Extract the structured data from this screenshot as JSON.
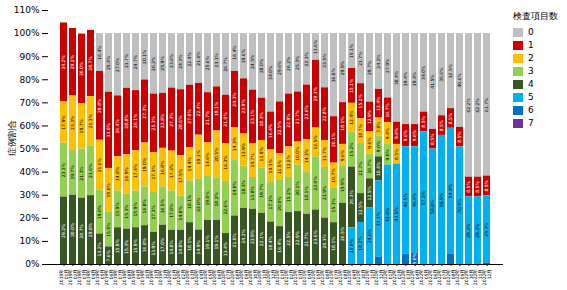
{
  "chart_data": {
    "type": "bar",
    "stacked": true,
    "data_labels": true,
    "grid": false,
    "legend": "right",
    "legend_title": "検査項目数",
    "ylabel": "症例割合",
    "ylim": [
      0,
      110
    ],
    "yticks": [
      {
        "value": 0,
        "label": "0%"
      },
      {
        "value": 10,
        "label": "10%"
      },
      {
        "value": 20,
        "label": "20%"
      },
      {
        "value": 30,
        "label": "30%"
      },
      {
        "value": 40,
        "label": "40%"
      },
      {
        "value": 50,
        "label": "50%"
      },
      {
        "value": 60,
        "label": "60%"
      },
      {
        "value": 70,
        "label": "70%"
      },
      {
        "value": 80,
        "label": "80%"
      },
      {
        "value": 90,
        "label": "90%"
      },
      {
        "value": 100,
        "label": "100%"
      },
      {
        "value": 110,
        "label": "110%"
      }
    ],
    "categories": [
      "2019年\n01月",
      "2019年\n02月",
      "2019年\n03月",
      "2019年\n04月",
      "2019年\n05月",
      "2019年\n06月",
      "2019年\n07月",
      "2019年\n08月",
      "2019年\n09月",
      "2019年\n10月",
      "2019年\n11月",
      "2019年\n12月",
      "2020年\n01月",
      "2020年\n02月",
      "2020年\n03月",
      "2020年\n04月",
      "2020年\n05月",
      "2020年\n06月",
      "2020年\n07月",
      "2020年\n08月",
      "2020年\n09月",
      "2020年\n10月",
      "2020年\n11月",
      "2020年\n12月",
      "2021年\n01月",
      "2021年\n02月",
      "2021年\n03月",
      "2021年\n04月",
      "2021年\n05月",
      "2021年\n06月",
      "2021年\n07月",
      "2021年\n08月",
      "2021年\n09月",
      "2021年\n10月",
      "2021年\n11月",
      "2021年\n12月",
      "2022年\n01月",
      "2022年\n02月",
      "2022年\n03月",
      "2022年\n04月",
      "2022年\n05月",
      "2022年\n06月",
      "2022年\n07月",
      "2022年\n08月",
      "2022年\n09月",
      "2022年\n10月",
      "2022年\n11月",
      "2022年\n12月"
    ],
    "series": [
      {
        "name": "0",
        "color": "#bfbfbf",
        "values": [
          0.0,
          0.0,
          0.3,
          0.0,
          16.4,
          25.4,
          27.0,
          23.7,
          24.7,
          20.1,
          26.2,
          25.9,
          23.6,
          24.3,
          22.4,
          21.6,
          25.6,
          23.1,
          26.7,
          16.4,
          19.6,
          24.5,
          28.0,
          34.0,
          29.6,
          26.2,
          25.3,
          22.3,
          11.6,
          23.5,
          36.0,
          29.9,
          15.1,
          21.7,
          29.7,
          24.2,
          27.9,
          38.4,
          39.4,
          39.4,
          34.0,
          41.5,
          35.6,
          32.5,
          40.6,
          62.2,
          62.2,
          61.7
        ],
        "value_labels": [
          null,
          null,
          null,
          null,
          "16.4%",
          "25.4%",
          "27.0%",
          "23.7%",
          "24.7%",
          "20.1%",
          "26.2%",
          "25.9%",
          "23.6%",
          "24.3%",
          "22.4%",
          "21.6%",
          "25.6%",
          "23.1%",
          "26.7%",
          "16.4%",
          "19.6%",
          "24.5%",
          "28.0%",
          "34.0%",
          "29.6%",
          "26.2%",
          "25.3%",
          "22.3%",
          "11.6%",
          "23.5%",
          "36.0%",
          "29.9%",
          "15.1%",
          "21.7%",
          "29.7%",
          "24.2%",
          "27.9%",
          "38.4%",
          "39.4%",
          "39.4%",
          "34.0%",
          "41.5%",
          "35.6%",
          "32.5%",
          "40.6%",
          "62.2%",
          "62.2%",
          "61.7%"
        ]
      },
      {
        "name": "1",
        "color": "#cc0000",
        "values": [
          34.2,
          29.2,
          30.0,
          28.7,
          29.8,
          33.0,
          26.4,
          28.8,
          26.1,
          27.3,
          25.3,
          23.8,
          27.3,
          28.6,
          27.0,
          22.4,
          21.7,
          19.1,
          21.0,
          24.3,
          23.9,
          23.1,
          18.3,
          16.4,
          22.5,
          22.9,
          21.7,
          23.6,
          29.3,
          22.8,
          20.1,
          18.1,
          15.1,
          15.2,
          12.9,
          12.4,
          10.7,
          9.6,
          9.6,
          9.6,
          8.5,
          8.5,
          8.5,
          8.5,
          8.5,
          8.5,
          8.5,
          8.5
        ],
        "value_labels": [
          "34.2%",
          "29.2%",
          "30.0%",
          "28.7%",
          "29.8%",
          "33.0%",
          "26.4%",
          "28.8%",
          "26.1%",
          "27.3%",
          "25.3%",
          "23.8%",
          "27.3%",
          "28.6%",
          "27.0%",
          "22.4%",
          "21.7%",
          "19.1%",
          "21.0%",
          "24.3%",
          "23.9%",
          "23.1%",
          "18.3%",
          "16.4%",
          "22.5%",
          "22.9%",
          "21.7%",
          "23.6%",
          "29.3%",
          "22.8%",
          "20.1%",
          "18.1%",
          "15.1%",
          "15.2%",
          "12.9%",
          "12.4%",
          "10.7%",
          "9.6%",
          "9.6%",
          "9.6%",
          "8.5%",
          "8.5%",
          "8.5%",
          "8.5%",
          "8.5%",
          "8.5%",
          "8.5%",
          "8.5%"
        ]
      },
      {
        "name": "2",
        "color": "#ffc000",
        "values": [
          17.9,
          23.3,
          19.7,
          21.3,
          21.6,
          19.0,
          14.8,
          16.9,
          17.4,
          19.0,
          17.3,
          16.8,
          17.3,
          17.5,
          14.4,
          19.1,
          14.6,
          20.5,
          16.3,
          14.3,
          13.9,
          14.7,
          11.9,
          14.1,
          11.5,
          13.2,
          10.0,
          14.3,
          12.5,
          11.7,
          10.7,
          9.6,
          12.4,
          10.7,
          9.6,
          7.8,
          9.4,
          8.5,
          0.0,
          0.0,
          0.0,
          0.0,
          0.0,
          0.0,
          0.0,
          0.0,
          0.0,
          0.0
        ],
        "value_labels": [
          "17.9%",
          "23.3%",
          "19.7%",
          "21.3%",
          "21.6%",
          "19.0%",
          "14.8%",
          "16.9%",
          "17.4%",
          "19.0%",
          "17.3%",
          "16.8%",
          "17.3%",
          "17.5%",
          "14.4%",
          "19.1%",
          "14.6%",
          "20.5%",
          "16.3%",
          "14.3%",
          "13.9%",
          "14.7%",
          "11.9%",
          "14.1%",
          "11.5%",
          "13.2%",
          "10.0%",
          "14.3%",
          "12.5%",
          "11.7%",
          "10.7%",
          "9.6%",
          "12.4%",
          "10.7%",
          "9.6%",
          "7.8%",
          "9.4%",
          "8.5%",
          null,
          null,
          null,
          null,
          null,
          null,
          null,
          null,
          null,
          null
        ]
      },
      {
        "name": "3",
        "color": "#92d050",
        "values": [
          23.3,
          19.7,
          21.3,
          21.6,
          19.0,
          15.0,
          15.9,
          15.3,
          15.9,
          16.8,
          17.3,
          16.5,
          17.0,
          14.8,
          18.1,
          22.0,
          19.0,
          18.2,
          22.6,
          24.0,
          18.3,
          13.8,
          19.7,
          17.1,
          20.0,
          15.2,
          20.1,
          18.1,
          23.0,
          21.9,
          15.1,
          15.9,
          15.2,
          21.7,
          10.7,
          9.0,
          9.0,
          0.0,
          0.0,
          0.0,
          0.0,
          0.0,
          0.0,
          0.0,
          0.0,
          0.0,
          0.0,
          0.0
        ],
        "value_labels": [
          "23.3%",
          "19.7%",
          "21.3%",
          "21.6%",
          "19.0%",
          "15.0%",
          "15.9%",
          "15.3%",
          "15.9%",
          "16.8%",
          "17.3%",
          "16.5%",
          "17.0%",
          "14.8%",
          "18.1%",
          "22.0%",
          "19.0%",
          "18.2%",
          "22.6%",
          "24.0%",
          "18.3%",
          "13.8%",
          "19.7%",
          "17.1%",
          "20.0%",
          "15.2%",
          "20.1%",
          "18.1%",
          "23.0%",
          "21.9%",
          "15.1%",
          "15.9%",
          "15.2%",
          "21.7%",
          "10.7%",
          "9.0%",
          "9.0%",
          null,
          null,
          null,
          null,
          null,
          null,
          null,
          null,
          null,
          null,
          null
        ]
      },
      {
        "name": "4",
        "color": "#375623",
        "values": [
          29.2,
          30.0,
          28.7,
          29.8,
          13.2,
          7.6,
          15.9,
          15.3,
          15.9,
          16.8,
          13.9,
          17.0,
          14.8,
          14.8,
          18.1,
          14.9,
          19.1,
          19.1,
          13.4,
          21.0,
          24.3,
          23.9,
          22.1,
          18.4,
          16.4,
          22.5,
          22.9,
          21.7,
          23.6,
          20.1,
          18.1,
          26.5,
          26.3,
          12.5,
          12.5,
          10.4,
          0.0,
          0.0,
          0.0,
          0.0,
          0.0,
          0.0,
          0.0,
          0.0,
          0.0,
          0.0,
          0.0,
          0.0
        ],
        "value_labels": [
          "29.2%",
          "30.0%",
          "28.7%",
          "29.8%",
          "13.2%",
          "7.6%",
          "15.9%",
          "15.3%",
          "15.9%",
          "16.8%",
          "13.9%",
          "17.0%",
          "14.8%",
          "14.8%",
          "18.1%",
          "14.9%",
          "19.1%",
          "19.1%",
          "13.4%",
          "21.0%",
          "24.3%",
          "23.9%",
          "22.1%",
          "18.4%",
          "16.4%",
          "22.5%",
          "22.9%",
          "21.7%",
          "23.6%",
          "20.1%",
          "18.1%",
          "26.5%",
          "26.3%",
          "12.5%",
          "12.5%",
          "10.4%",
          null,
          null,
          null,
          null,
          null,
          null,
          null,
          null,
          null,
          null,
          null,
          null
        ]
      },
      {
        "name": "5",
        "color": "#00b0f0",
        "values": [
          0.0,
          0.0,
          0.0,
          0.0,
          0.0,
          0.0,
          0.0,
          0.0,
          0.0,
          0.0,
          0.0,
          0.0,
          0.0,
          0.0,
          0.0,
          0.0,
          0.0,
          0.0,
          0.0,
          0.0,
          0.0,
          0.0,
          0.0,
          0.0,
          0.0,
          0.0,
          0.0,
          0.0,
          0.0,
          0.0,
          0.0,
          0.0,
          15.9,
          18.2,
          24.6,
          33.1,
          43.0,
          43.5,
          46.5,
          46.0,
          57.5,
          50.0,
          55.9,
          54.4,
          50.9,
          29.3,
          29.3,
          29.3
        ],
        "value_labels": [
          null,
          null,
          null,
          null,
          null,
          null,
          null,
          null,
          null,
          null,
          null,
          null,
          null,
          null,
          null,
          null,
          null,
          null,
          null,
          null,
          null,
          null,
          null,
          null,
          null,
          null,
          null,
          null,
          null,
          null,
          null,
          null,
          "15.9%",
          "18.2%",
          "24.6%",
          "33.1%",
          "43.0%",
          "43.5%",
          "46.5%",
          "46.0%",
          "57.5%",
          "50.0%",
          "55.9%",
          "54.4%",
          "50.9%",
          "29.3%",
          "29.3%",
          "29.3%"
        ]
      },
      {
        "name": "6",
        "color": "#0070c0",
        "values": [
          0.0,
          0.0,
          0.0,
          0.0,
          0.0,
          0.0,
          0.0,
          0.0,
          0.0,
          0.0,
          0.0,
          0.0,
          0.0,
          0.0,
          0.0,
          0.0,
          0.0,
          0.0,
          0.0,
          0.0,
          0.0,
          0.0,
          0.0,
          0.0,
          0.0,
          0.0,
          0.0,
          0.0,
          0.0,
          0.0,
          0.0,
          0.0,
          0.0,
          0.0,
          0.0,
          3.1,
          0.0,
          0.0,
          4.5,
          5.0,
          0.0,
          0.0,
          0.0,
          4.6,
          0.0,
          0.0,
          0.0,
          0.0
        ],
        "value_labels": [
          null,
          null,
          null,
          null,
          null,
          null,
          null,
          null,
          null,
          null,
          null,
          null,
          null,
          null,
          null,
          null,
          null,
          null,
          null,
          null,
          null,
          null,
          null,
          null,
          null,
          null,
          null,
          null,
          null,
          null,
          null,
          null,
          null,
          null,
          null,
          null,
          null,
          null,
          null,
          "5.0%",
          null,
          null,
          null,
          null,
          null,
          null,
          null,
          null
        ]
      },
      {
        "name": "7",
        "color": "#7030a0",
        "values": [
          0.0,
          0.0,
          0.0,
          0.0,
          0.0,
          0.0,
          0.0,
          0.0,
          0.0,
          0.0,
          0.0,
          0.0,
          0.0,
          0.0,
          0.0,
          0.0,
          0.0,
          0.0,
          0.0,
          0.0,
          0.0,
          0.0,
          0.0,
          0.0,
          0.0,
          0.0,
          0.0,
          0.0,
          0.0,
          0.0,
          0.0,
          0.0,
          0.0,
          0.0,
          0.0,
          0.0,
          0.0,
          0.0,
          0.0,
          0.0,
          0.0,
          0.0,
          0.0,
          0.0,
          0.0,
          0.0,
          0.0,
          0.5
        ],
        "value_labels": [
          null,
          null,
          null,
          null,
          null,
          null,
          null,
          null,
          null,
          null,
          null,
          null,
          null,
          null,
          null,
          null,
          null,
          null,
          null,
          null,
          null,
          null,
          null,
          null,
          null,
          null,
          null,
          null,
          null,
          null,
          null,
          null,
          null,
          null,
          null,
          null,
          null,
          null,
          null,
          null,
          null,
          null,
          null,
          null,
          null,
          null,
          null,
          null
        ]
      }
    ]
  }
}
